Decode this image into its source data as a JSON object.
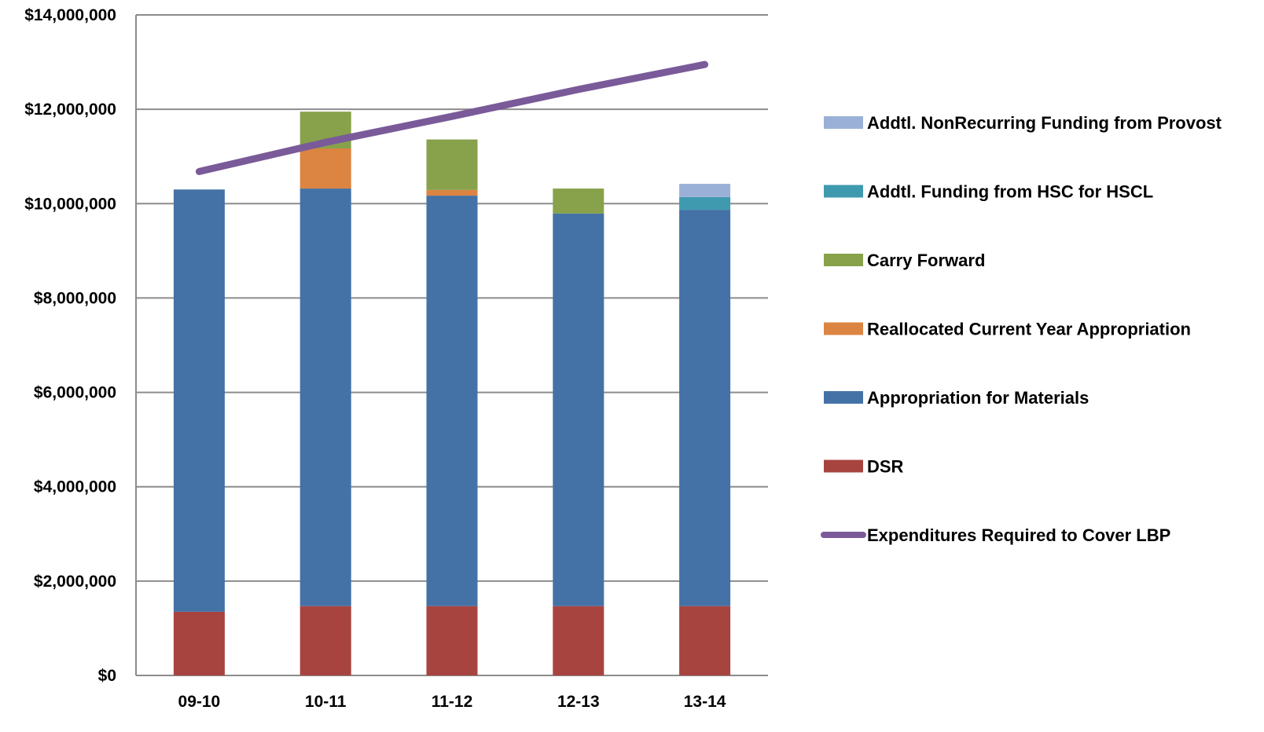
{
  "chart_data": {
    "type": "bar",
    "stacked": true,
    "categories": [
      "09-10",
      "10-11",
      "11-12",
      "12-13",
      "13-14"
    ],
    "ylim": [
      0,
      14000000
    ],
    "y_ticks": [
      0,
      2000000,
      4000000,
      6000000,
      8000000,
      10000000,
      12000000,
      14000000
    ],
    "y_tick_labels": [
      "$0",
      "$2,000,000",
      "$4,000,000",
      "$6,000,000",
      "$8,000,000",
      "$10,000,000",
      "$12,000,000",
      "$14,000,000"
    ],
    "grid": true,
    "legend_position": "right",
    "series": [
      {
        "name": "DSR",
        "type": "bar",
        "color": "#a8443f",
        "values": [
          1350000,
          1470000,
          1470000,
          1470000,
          1470000
        ]
      },
      {
        "name": "Appropriation for Materials",
        "type": "bar",
        "color": "#4472a6",
        "values": [
          8950000,
          8850000,
          8700000,
          8320000,
          8400000
        ]
      },
      {
        "name": "Reallocated Current Year Appropriation",
        "type": "bar",
        "color": "#dc8441",
        "values": [
          0,
          850000,
          120000,
          0,
          0
        ]
      },
      {
        "name": "Carry Forward",
        "type": "bar",
        "color": "#87a24b",
        "values": [
          0,
          780000,
          1070000,
          530000,
          0
        ]
      },
      {
        "name": "Addtl. Funding from HSC for HSCL",
        "type": "bar",
        "color": "#3f9ab0",
        "values": [
          0,
          0,
          0,
          0,
          270000
        ]
      },
      {
        "name": "Addtl. NonRecurring Funding from Provost",
        "type": "bar",
        "color": "#9bb0d6",
        "values": [
          0,
          0,
          0,
          0,
          280000
        ]
      },
      {
        "name": "Expenditures Required to Cover LBP",
        "type": "line",
        "color": "#7a5a99",
        "values": [
          10680000,
          11300000,
          11850000,
          12420000,
          12950000
        ]
      }
    ],
    "legend_order": [
      "Addtl. NonRecurring Funding from Provost",
      "Addtl. Funding from HSC for HSCL",
      "Carry Forward",
      "Reallocated Current Year Appropriation",
      "Appropriation for Materials",
      "DSR",
      "Expenditures Required to Cover LBP"
    ]
  }
}
